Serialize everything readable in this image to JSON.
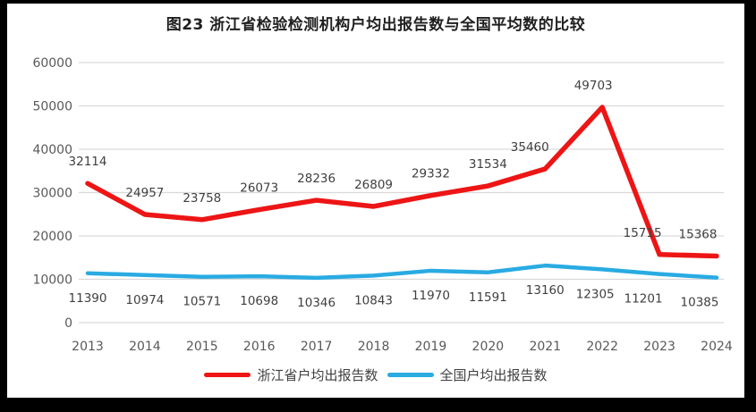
{
  "chart_data": {
    "type": "line",
    "title": "图23  浙江省检验检测机构户均出报告数与全国平均数的比较",
    "categories": [
      "2013",
      "2014",
      "2015",
      "2016",
      "2017",
      "2018",
      "2019",
      "2020",
      "2021",
      "2022",
      "2023",
      "2024"
    ],
    "series": [
      {
        "name": "浙江省户均出报告数",
        "color": "#ed1515",
        "values": [
          32114,
          24957,
          23758,
          26073,
          28236,
          26809,
          29332,
          31534,
          35460,
          49703,
          15715,
          15368
        ],
        "label_position": "above"
      },
      {
        "name": "全国户均出报告数",
        "color": "#29abe2",
        "values": [
          11390,
          10974,
          10571,
          10698,
          10346,
          10843,
          11970,
          11591,
          13160,
          12305,
          11201,
          10385
        ],
        "label_position": "below"
      }
    ],
    "xlabel": "",
    "ylabel": "",
    "ylim": [
      0,
      60000
    ],
    "ytick_step": 10000,
    "ytick_labels": [
      "0",
      "10000",
      "20000",
      "30000",
      "40000",
      "50000",
      "60000"
    ],
    "grid": true,
    "legend_position": "bottom",
    "colors": {
      "gridline": "#d9d9d9",
      "tick_text": "#595959",
      "data_label": "#3f3f3f",
      "title_text": "#1f1f1f",
      "frame": "#000000",
      "background": "#ffffff"
    }
  }
}
